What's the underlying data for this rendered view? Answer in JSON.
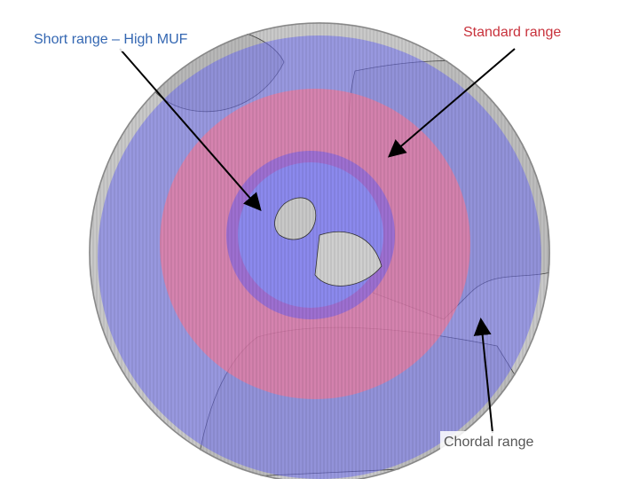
{
  "labels": {
    "short_range": "Short range – High MUF",
    "standard_range": "Standard range",
    "chordal_range": "Chordal range"
  }
}
